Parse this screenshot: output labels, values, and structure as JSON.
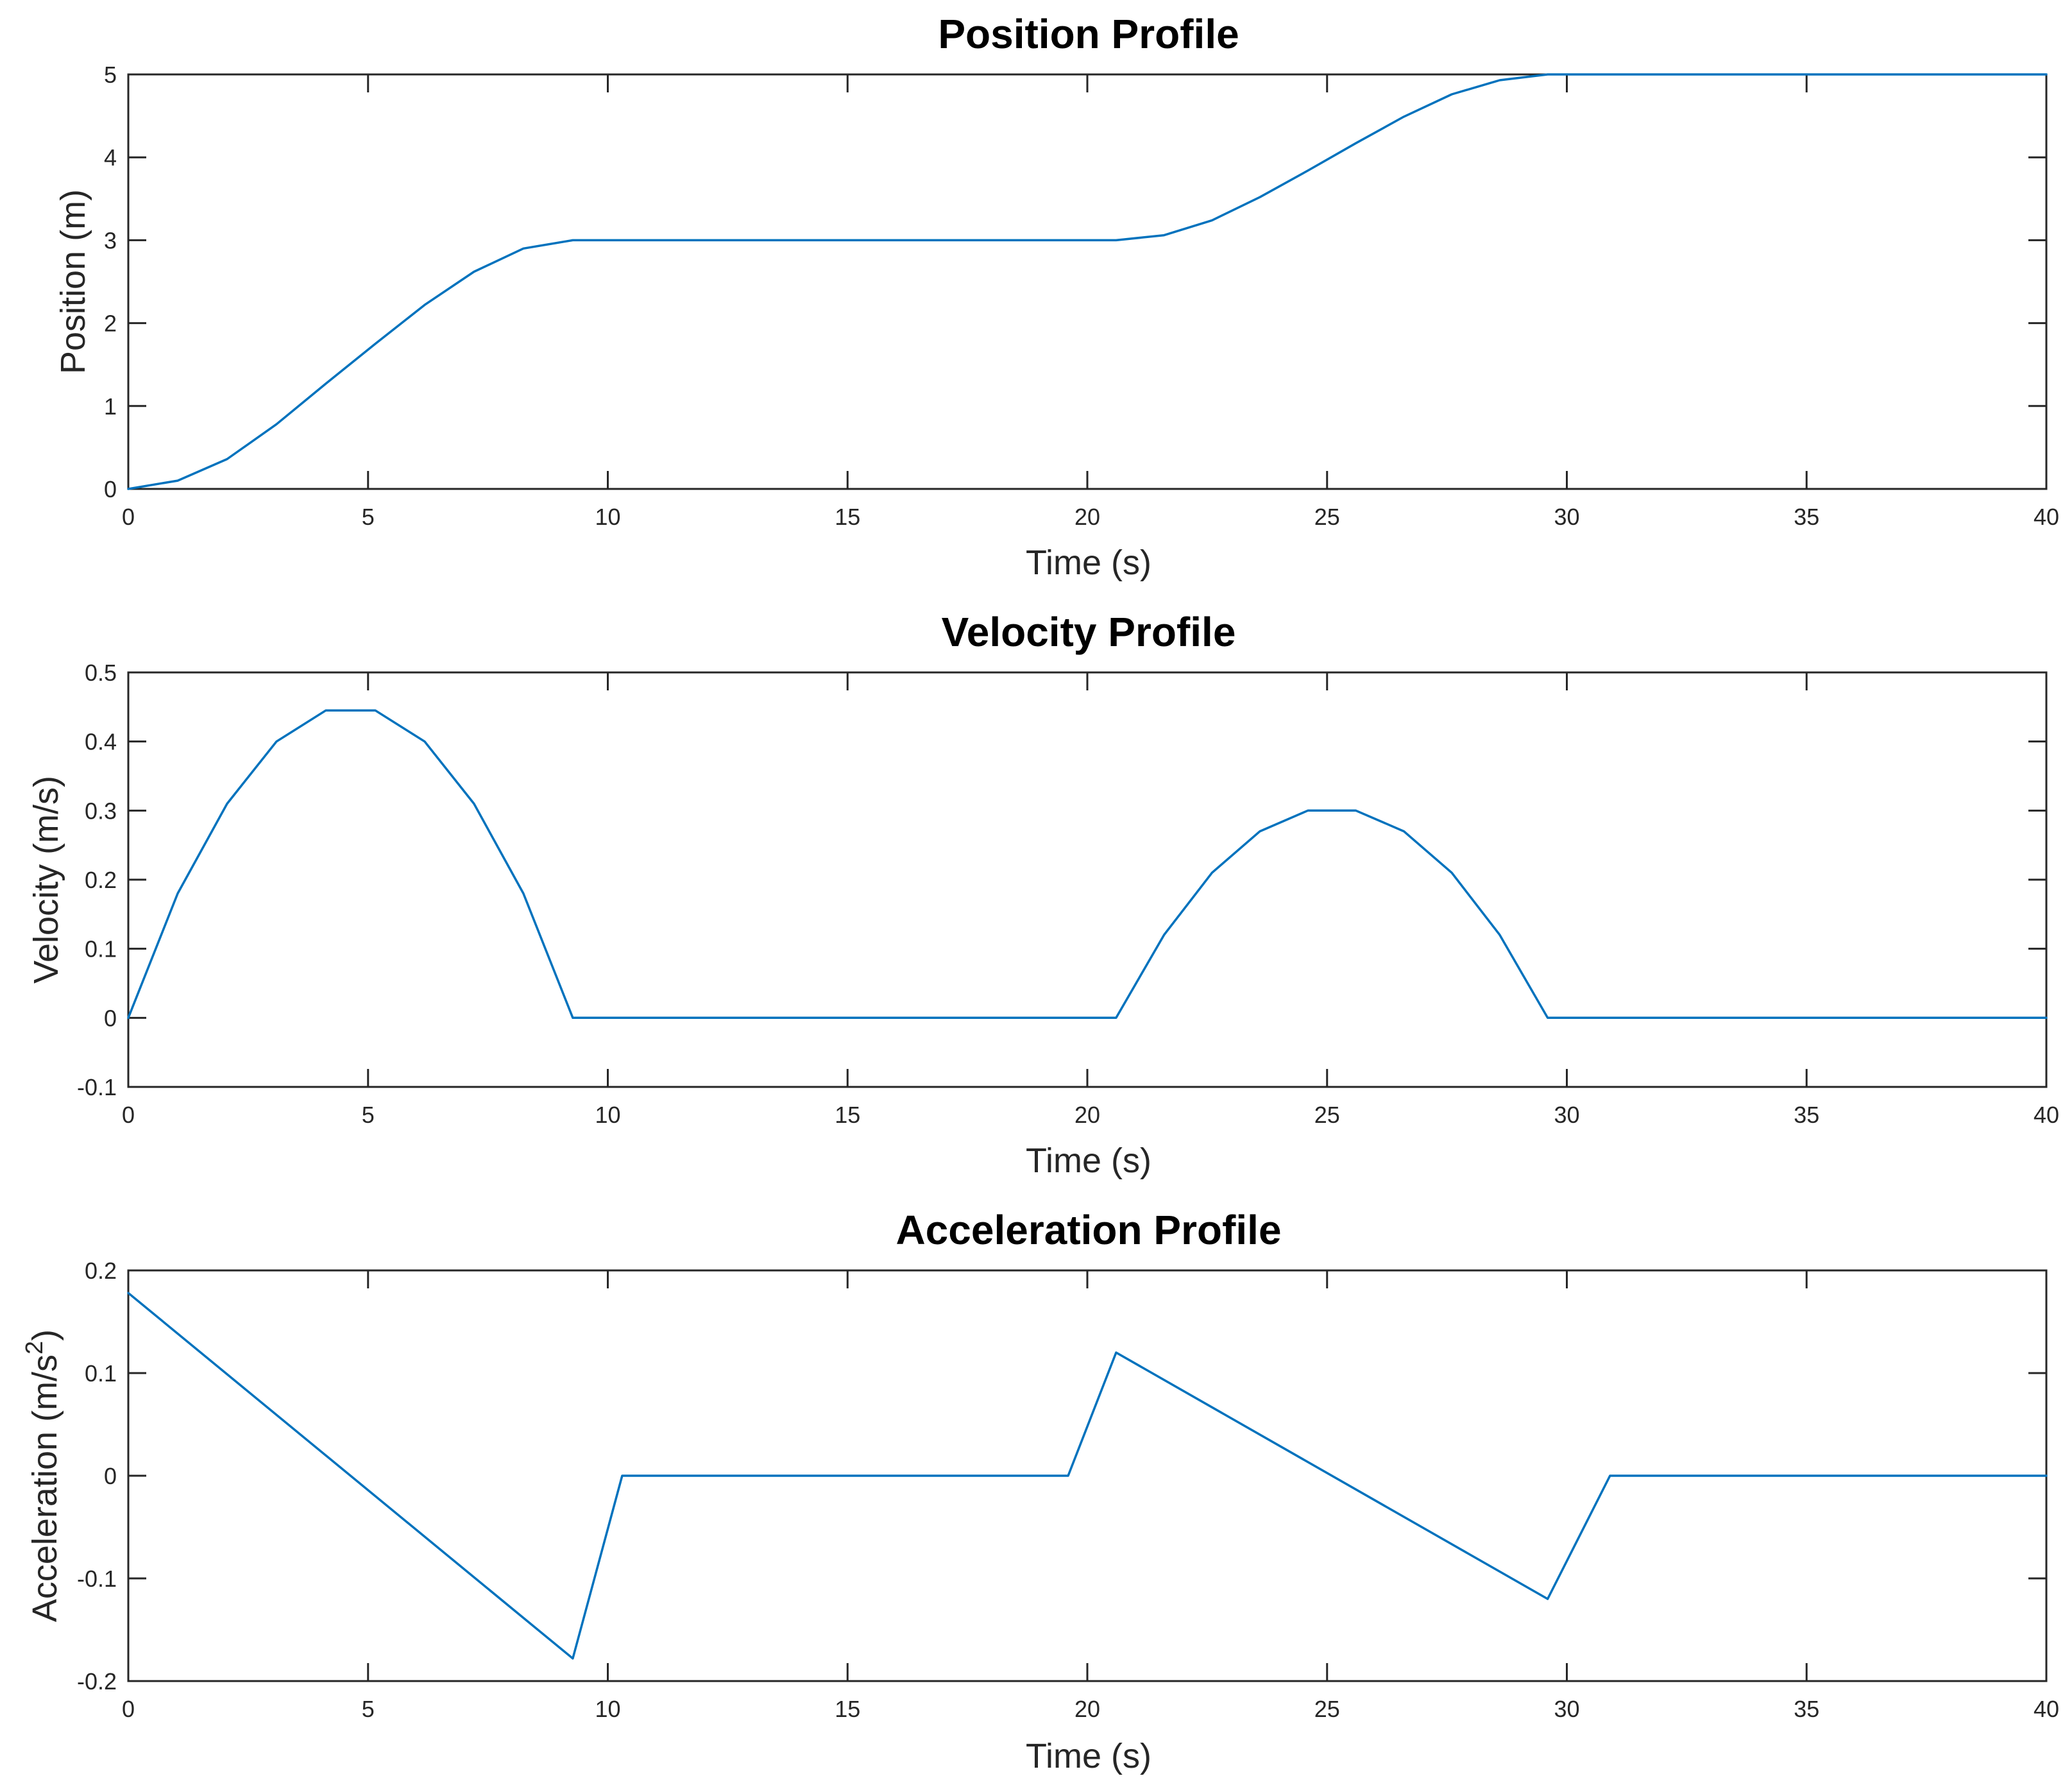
{
  "figure": {
    "line_color": "#0072BD",
    "background": "#ffffff",
    "axis_color": "#262626"
  },
  "chart_data": [
    {
      "type": "line",
      "title": "Position Profile",
      "xlabel": "Time (s)",
      "ylabel": "Position (m)",
      "xlim": [
        0,
        40
      ],
      "ylim": [
        0,
        5
      ],
      "xticks": [
        "0",
        "5",
        "10",
        "15",
        "20",
        "25",
        "30",
        "35",
        "40"
      ],
      "yticks": [
        "0",
        "1",
        "2",
        "3",
        "4",
        "5"
      ],
      "grid": false,
      "series": [
        {
          "x": [
            0,
            1.03,
            2.06,
            3.09,
            4.12,
            5.15,
            6.18,
            7.21,
            8.24,
            9.27,
            10,
            15,
            20,
            20.6,
            21.6,
            22.6,
            23.6,
            24.6,
            25.6,
            26.6,
            27.6,
            28.6,
            29.6,
            30,
            35,
            40
          ],
          "y": [
            0,
            0.1,
            0.36,
            0.78,
            1.27,
            1.75,
            2.22,
            2.62,
            2.9,
            3.0,
            3.0,
            3.0,
            3.0,
            3.0,
            3.06,
            3.24,
            3.52,
            3.84,
            4.17,
            4.49,
            4.76,
            4.93,
            5.0,
            5.0,
            5.0,
            5.0
          ]
        }
      ]
    },
    {
      "type": "line",
      "title": "Velocity Profile",
      "xlabel": "Time (s)",
      "ylabel": "Velocity (m/s)",
      "xlim": [
        0,
        40
      ],
      "ylim": [
        -0.1,
        0.5
      ],
      "xticks": [
        "0",
        "5",
        "10",
        "15",
        "20",
        "25",
        "30",
        "35",
        "40"
      ],
      "yticks": [
        "-0.1",
        "0",
        "0.1",
        "0.2",
        "0.3",
        "0.4",
        "0.5"
      ],
      "grid": false,
      "series": [
        {
          "x": [
            0,
            1.03,
            2.06,
            3.09,
            4.12,
            5.15,
            6.18,
            7.21,
            8.24,
            9.27,
            20.6,
            21.6,
            22.6,
            23.6,
            24.6,
            25.6,
            26.6,
            27.6,
            28.6,
            29.6,
            40
          ],
          "y": [
            0,
            0.18,
            0.31,
            0.4,
            0.445,
            0.445,
            0.4,
            0.31,
            0.18,
            0,
            0,
            0.12,
            0.21,
            0.27,
            0.3,
            0.3,
            0.27,
            0.21,
            0.12,
            0,
            0
          ]
        }
      ]
    },
    {
      "type": "line",
      "title": "Acceleration Profile",
      "xlabel": "Time (s)",
      "ylabel": "Acceleration (m/s",
      "ylabel_sup": "2",
      "ylabel_end": ")",
      "xlim": [
        0,
        40
      ],
      "ylim": [
        -0.2,
        0.2
      ],
      "xticks": [
        "0",
        "5",
        "10",
        "15",
        "20",
        "25",
        "30",
        "35",
        "40"
      ],
      "yticks": [
        "-0.2",
        "-0.1",
        "0",
        "0.1",
        "0.2"
      ],
      "grid": false,
      "series": [
        {
          "x": [
            0,
            9.27,
            10.3,
            19.6,
            20.6,
            29.6,
            30.9,
            40
          ],
          "y": [
            0.178,
            -0.178,
            0,
            0,
            0.12,
            -0.12,
            0,
            0
          ]
        }
      ]
    }
  ]
}
